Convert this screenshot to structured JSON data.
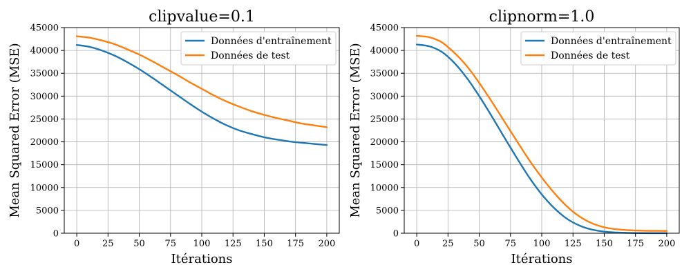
{
  "chart_data": [
    {
      "type": "line",
      "title": "clipvalue=0.1",
      "xlabel": "Itérations",
      "ylabel": "Mean Squared Error (MSE)",
      "xlim": [
        -10,
        210
      ],
      "ylim": [
        0,
        45000
      ],
      "xticks": [
        0,
        25,
        50,
        75,
        100,
        125,
        150,
        175,
        200
      ],
      "yticks": [
        0,
        5000,
        10000,
        15000,
        20000,
        25000,
        30000,
        35000,
        40000,
        45000
      ],
      "grid": true,
      "legend": "top-right",
      "x": [
        0,
        10,
        20,
        30,
        40,
        50,
        60,
        70,
        80,
        90,
        100,
        110,
        120,
        130,
        140,
        150,
        160,
        170,
        180,
        190,
        200
      ],
      "series": [
        {
          "name": "Données d'entraînement",
          "color": "#1f77b4",
          "values": [
            41200,
            40800,
            40000,
            38900,
            37500,
            35900,
            34100,
            32200,
            30300,
            28400,
            26600,
            25000,
            23600,
            22500,
            21700,
            21000,
            20500,
            20100,
            19800,
            19550,
            19300
          ]
        },
        {
          "name": "Données de test",
          "color": "#ff7f0e",
          "values": [
            43100,
            42800,
            42200,
            41400,
            40300,
            39100,
            37700,
            36200,
            34700,
            33100,
            31600,
            30100,
            28800,
            27700,
            26700,
            25900,
            25200,
            24600,
            24000,
            23600,
            23200
          ]
        }
      ]
    },
    {
      "type": "line",
      "title": "clipnorm=1.0",
      "xlabel": "Itérations",
      "ylabel": "Mean Squared Error (MSE)",
      "xlim": [
        -10,
        210
      ],
      "ylim": [
        0,
        45000
      ],
      "xticks": [
        0,
        25,
        50,
        75,
        100,
        125,
        150,
        175,
        200
      ],
      "yticks": [
        0,
        5000,
        10000,
        15000,
        20000,
        25000,
        30000,
        35000,
        40000,
        45000
      ],
      "grid": true,
      "legend": "top-right",
      "x": [
        0,
        10,
        20,
        30,
        40,
        50,
        60,
        70,
        80,
        90,
        100,
        110,
        120,
        130,
        140,
        150,
        160,
        170,
        180,
        190,
        200
      ],
      "series": [
        {
          "name": "Données d'entraînement",
          "color": "#1f77b4",
          "values": [
            41300,
            40900,
            39700,
            37300,
            34000,
            30000,
            25600,
            21000,
            16500,
            12200,
            8500,
            5500,
            3200,
            1700,
            800,
            350,
            150,
            60,
            25,
            10,
            5
          ]
        },
        {
          "name": "Données de test",
          "color": "#ff7f0e",
          "values": [
            43200,
            42900,
            41800,
            39500,
            36600,
            32900,
            28800,
            24500,
            20200,
            16000,
            12200,
            8800,
            5900,
            3700,
            2200,
            1300,
            850,
            650,
            550,
            520,
            500
          ]
        }
      ]
    }
  ]
}
